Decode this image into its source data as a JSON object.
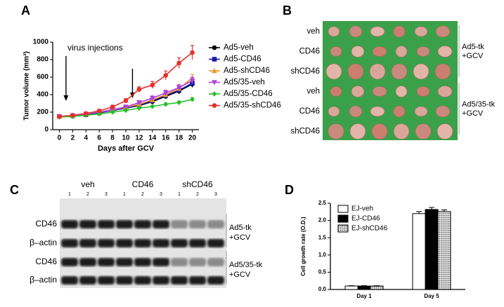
{
  "panel_labels": [
    "A",
    "B",
    "C",
    "D"
  ],
  "chart_data": [
    {
      "type": "line",
      "xlabel": "Days after GCV",
      "ylabel": "Tumor volume (mm³)",
      "annotation": {
        "text": "virus injections",
        "x": [
          1,
          11
        ]
      },
      "x": [
        0,
        2,
        4,
        6,
        8,
        10,
        12,
        14,
        16,
        18,
        20
      ],
      "xlim": [
        -1,
        21
      ],
      "xticks": [
        0,
        2,
        4,
        6,
        8,
        10,
        12,
        14,
        16,
        18,
        20
      ],
      "ylim": [
        0,
        1000
      ],
      "yticks": [
        0,
        200,
        400,
        600,
        800,
        1000
      ],
      "legend": "right",
      "series": [
        {
          "name": "Ad5-veh",
          "color": "#000000",
          "marker": "circle",
          "values": [
            150,
            160,
            175,
            195,
            220,
            245,
            275,
            320,
            380,
            440,
            520
          ],
          "errors": [
            5,
            5,
            8,
            10,
            12,
            15,
            18,
            22,
            28,
            32,
            38
          ]
        },
        {
          "name": "Ad5-CD46",
          "color": "#1a1aa8",
          "marker": "square",
          "values": [
            150,
            158,
            172,
            192,
            218,
            245,
            280,
            330,
            390,
            450,
            530
          ],
          "errors": [
            5,
            5,
            8,
            10,
            12,
            15,
            18,
            22,
            28,
            32,
            38
          ]
        },
        {
          "name": "Ad5-shCD46",
          "color": "#f0962d",
          "marker": "triangle-up",
          "values": [
            150,
            160,
            180,
            200,
            225,
            255,
            290,
            340,
            400,
            470,
            590
          ],
          "errors": [
            5,
            5,
            8,
            10,
            12,
            15,
            18,
            22,
            28,
            32,
            40
          ]
        },
        {
          "name": "Ad5/35-veh",
          "color": "#b040e0",
          "marker": "triangle-down",
          "values": [
            150,
            160,
            178,
            200,
            230,
            260,
            310,
            360,
            420,
            480,
            560
          ],
          "errors": [
            5,
            5,
            8,
            10,
            12,
            15,
            20,
            25,
            30,
            35,
            40
          ]
        },
        {
          "name": "Ad5/35-CD46",
          "color": "#22c022",
          "marker": "diamond",
          "values": [
            145,
            150,
            165,
            180,
            200,
            220,
            245,
            265,
            290,
            310,
            345
          ],
          "errors": [
            5,
            5,
            6,
            8,
            8,
            10,
            10,
            12,
            14,
            16,
            20
          ]
        },
        {
          "name": "Ad5/35-shCD46",
          "color": "#e8302a",
          "marker": "circle",
          "values": [
            150,
            165,
            185,
            215,
            260,
            330,
            460,
            510,
            620,
            760,
            880
          ],
          "errors": [
            8,
            10,
            12,
            15,
            20,
            25,
            30,
            40,
            50,
            60,
            80
          ]
        }
      ]
    },
    {
      "type": "bar",
      "ylabel": "Cell growth rate (O.D.)",
      "categories": [
        "Day 1",
        "Day 5"
      ],
      "ylim": [
        0,
        2.5
      ],
      "yticks": [
        {
          "value": 0,
          "label": "0.0"
        },
        0.5,
        {
          "value": 1,
          "label": "1.0"
        },
        1.5,
        {
          "value": 2,
          "label": "2.0"
        },
        2.5
      ],
      "legend": "upper left",
      "series": [
        {
          "name": "EJ-veh",
          "color": "#ffffff",
          "values": [
            0.1,
            2.2
          ],
          "errors": [
            0.01,
            0.06
          ]
        },
        {
          "name": "EJ-CD46",
          "color": "#000000",
          "values": [
            0.1,
            2.32
          ],
          "errors": [
            0.01,
            0.06
          ]
        },
        {
          "name": "EJ-shCD46",
          "color": "#bdbdbd",
          "hatch": "dots",
          "values": [
            0.1,
            2.26
          ],
          "errors": [
            0.01,
            0.05
          ]
        }
      ]
    }
  ],
  "photo": {
    "row_labels": [
      "veh",
      "CD46",
      "shCD46",
      "veh",
      "CD46",
      "shCD46"
    ],
    "group_labels": [
      [
        "Ad5-tk",
        "+GCV"
      ],
      [
        "Ad5/35-tk",
        "+GCV"
      ]
    ]
  },
  "blot": {
    "conditions": [
      "veh",
      "CD46",
      "shCD46"
    ],
    "lanes": [
      "1",
      "2",
      "3"
    ],
    "row_labels": [
      "CD46",
      "β–actin",
      "CD46",
      "β–actin"
    ],
    "group_labels": [
      [
        "Ad5-tk",
        "+GCV"
      ],
      [
        "Ad5/35-tk",
        "+GCV"
      ]
    ]
  }
}
